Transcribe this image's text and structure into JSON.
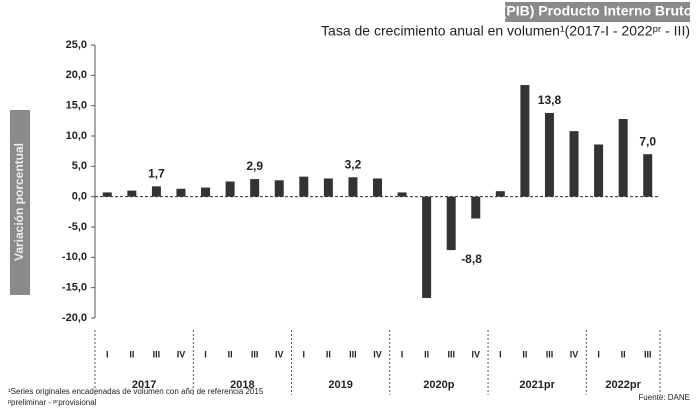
{
  "chart_data": {
    "type": "bar",
    "title": "(PIB) Producto Interno Bruto",
    "subtitle": "Tasa de crecimiento anual en volumen¹(2017-I - 2022ᵖʳ - III)",
    "y_label": "Variación porcentual",
    "categories": [
      "I",
      "II",
      "III",
      "IV",
      "I",
      "II",
      "III",
      "IV",
      "I",
      "II",
      "III",
      "IV",
      "I",
      "II",
      "III",
      "IV",
      "I",
      "II",
      "III",
      "IV",
      "I",
      "II",
      "III"
    ],
    "groups": [
      "2017",
      "2018",
      "2019",
      "2020p",
      "2021pr",
      "2022pr"
    ],
    "values": [
      0.7,
      1.0,
      1.7,
      1.3,
      1.5,
      2.5,
      2.9,
      2.7,
      3.3,
      3.0,
      3.2,
      3.0,
      0.7,
      -16.7,
      -8.8,
      -3.6,
      0.9,
      18.4,
      13.8,
      10.8,
      8.6,
      12.8,
      7.0
    ],
    "value_labels": [
      null,
      null,
      "1,7",
      null,
      null,
      null,
      "2,9",
      null,
      null,
      null,
      "3,2",
      null,
      null,
      null,
      "-8,8",
      null,
      null,
      null,
      "13,8",
      null,
      null,
      null,
      "7,0"
    ],
    "color": "#333333",
    "ylim": [
      -20,
      25
    ],
    "yticks": [
      {
        "value": -20,
        "label": "-20,0"
      },
      {
        "value": -15,
        "label": "-15,0"
      },
      {
        "value": -10,
        "label": "-10,0"
      },
      {
        "value": -5,
        "label": "-5,0"
      },
      {
        "value": 0,
        "label": "0,0"
      },
      {
        "value": 5,
        "label": "5,0"
      },
      {
        "value": 10,
        "label": "10,0"
      },
      {
        "value": 15,
        "label": "15,0"
      },
      {
        "value": 20,
        "label": "20,0"
      },
      {
        "value": 25,
        "label": "25,0"
      }
    ],
    "notes": [
      "¹Series originales encadenadas de volumen con año de referencia 2015",
      "ᵖpreliminar - ᵖʳprovisional"
    ],
    "source": "Fuente: DANE"
  }
}
